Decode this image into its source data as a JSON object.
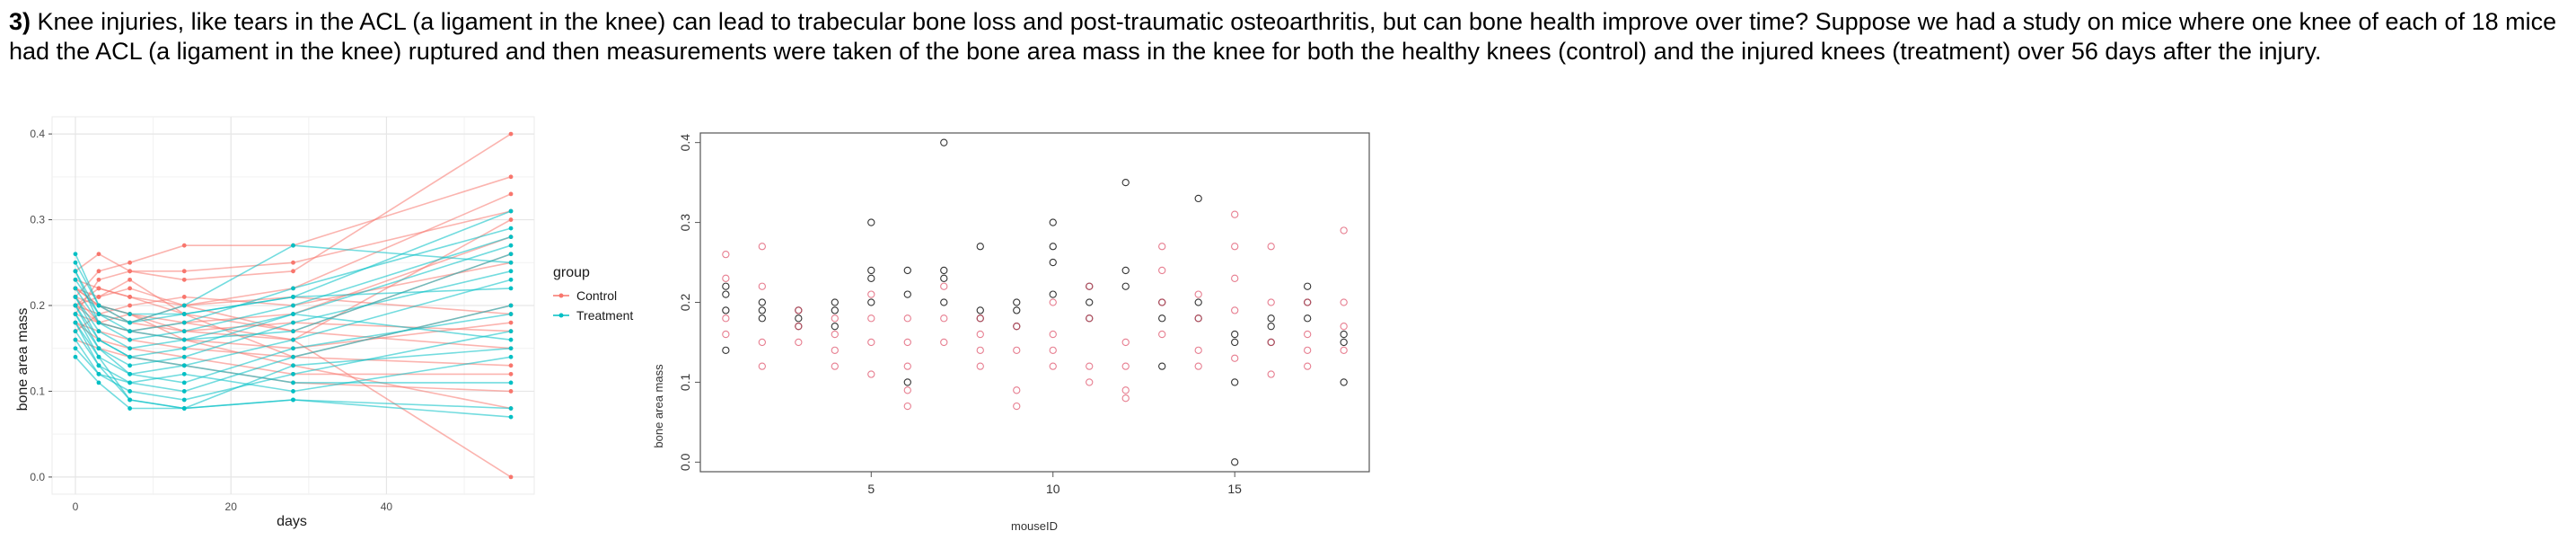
{
  "question": {
    "number": "3)",
    "text": " Knee injuries, like tears in the ACL (a ligament in the knee) can lead to trabecular bone loss and post-traumatic osteoarthritis, but can bone health improve over time? Suppose we had a study on mice where one knee of each of 18 mice had the ACL (a ligament in the knee) ruptured and then measurements were taken of the bone area mass in the knee for both the healthy knees (control) and the injured knees (treatment) over 56 days after the injury."
  },
  "colors": {
    "control": "#f8766d",
    "treatment": "#00bfc4",
    "black_points": "#000000",
    "pink_points": "#df536b"
  },
  "chart_data": [
    {
      "type": "line",
      "title": "",
      "xlabel": "days",
      "ylabel": "bone area mass",
      "xlim": [
        -3,
        59
      ],
      "ylim": [
        -0.02,
        0.42
      ],
      "xticks": [
        "0",
        "20",
        "40"
      ],
      "yticks": [
        "0.0",
        "0.1",
        "0.2",
        "0.3",
        "0.4"
      ],
      "legend": {
        "title": "group",
        "entries": [
          "Control",
          "Treatment"
        ],
        "position": "right"
      },
      "x": [
        0,
        3,
        7,
        14,
        28,
        56
      ],
      "series": [
        {
          "name": "Control",
          "values": [
            0.21,
            0.24,
            0.25,
            0.27,
            0.27,
            0.35
          ]
        },
        {
          "name": "Control",
          "values": [
            0.24,
            0.26,
            0.24,
            0.23,
            0.24,
            0.4
          ]
        },
        {
          "name": "Control",
          "values": [
            0.2,
            0.22,
            0.21,
            0.2,
            0.22,
            0.33
          ]
        },
        {
          "name": "Control",
          "values": [
            0.22,
            0.2,
            0.19,
            0.17,
            0.16,
            0.3
          ]
        },
        {
          "name": "Control",
          "values": [
            0.19,
            0.23,
            0.24,
            0.24,
            0.25,
            0.31
          ]
        },
        {
          "name": "Control",
          "values": [
            0.21,
            0.18,
            0.17,
            0.18,
            0.19,
            0.28
          ]
        },
        {
          "name": "Control",
          "values": [
            0.23,
            0.22,
            0.21,
            0.19,
            0.17,
            0.26
          ]
        },
        {
          "name": "Control",
          "values": [
            0.2,
            0.19,
            0.2,
            0.21,
            0.2,
            0.25
          ]
        },
        {
          "name": "Control",
          "values": [
            0.18,
            0.17,
            0.16,
            0.15,
            0.14,
            0.2
          ]
        },
        {
          "name": "Control",
          "values": [
            0.22,
            0.21,
            0.22,
            0.2,
            0.21,
            0.19
          ]
        },
        {
          "name": "Control",
          "values": [
            0.19,
            0.18,
            0.19,
            0.16,
            0.15,
            0.18
          ]
        },
        {
          "name": "Control",
          "values": [
            0.21,
            0.2,
            0.18,
            0.17,
            0.18,
            0.17
          ]
        },
        {
          "name": "Control",
          "values": [
            0.17,
            0.19,
            0.18,
            0.2,
            0.17,
            0.15
          ]
        },
        {
          "name": "Control",
          "values": [
            0.2,
            0.21,
            0.23,
            0.19,
            0.14,
            0.13
          ]
        },
        {
          "name": "Control",
          "values": [
            0.18,
            0.16,
            0.15,
            0.14,
            0.12,
            0.12
          ]
        },
        {
          "name": "Control",
          "values": [
            0.16,
            0.15,
            0.14,
            0.13,
            0.11,
            0.1
          ]
        },
        {
          "name": "Control",
          "values": [
            0.2,
            0.18,
            0.17,
            0.16,
            0.13,
            0.08
          ]
        },
        {
          "name": "Control",
          "values": [
            0.22,
            0.2,
            0.19,
            0.18,
            0.16,
            0.0
          ]
        },
        {
          "name": "Treatment",
          "values": [
            0.26,
            0.2,
            0.18,
            0.19,
            0.21,
            0.31
          ]
        },
        {
          "name": "Treatment",
          "values": [
            0.24,
            0.19,
            0.17,
            0.18,
            0.22,
            0.29
          ]
        },
        {
          "name": "Treatment",
          "values": [
            0.22,
            0.18,
            0.16,
            0.17,
            0.2,
            0.28
          ]
        },
        {
          "name": "Treatment",
          "values": [
            0.2,
            0.16,
            0.14,
            0.15,
            0.19,
            0.27
          ]
        },
        {
          "name": "Treatment",
          "values": [
            0.21,
            0.17,
            0.15,
            0.16,
            0.17,
            0.26
          ]
        },
        {
          "name": "Treatment",
          "values": [
            0.23,
            0.19,
            0.18,
            0.2,
            0.27,
            0.25
          ]
        },
        {
          "name": "Treatment",
          "values": [
            0.19,
            0.15,
            0.13,
            0.14,
            0.18,
            0.24
          ]
        },
        {
          "name": "Treatment",
          "values": [
            0.18,
            0.14,
            0.12,
            0.13,
            0.16,
            0.23
          ]
        },
        {
          "name": "Treatment",
          "values": [
            0.25,
            0.2,
            0.19,
            0.19,
            0.21,
            0.22
          ]
        },
        {
          "name": "Treatment",
          "values": [
            0.17,
            0.13,
            0.11,
            0.1,
            0.14,
            0.2
          ]
        },
        {
          "name": "Treatment",
          "values": [
            0.2,
            0.15,
            0.12,
            0.11,
            0.15,
            0.19
          ]
        },
        {
          "name": "Treatment",
          "values": [
            0.16,
            0.12,
            0.1,
            0.09,
            0.12,
            0.17
          ]
        },
        {
          "name": "Treatment",
          "values": [
            0.24,
            0.18,
            0.17,
            0.16,
            0.19,
            0.16
          ]
        },
        {
          "name": "Treatment",
          "values": [
            0.19,
            0.14,
            0.09,
            0.08,
            0.13,
            0.15
          ]
        },
        {
          "name": "Treatment",
          "values": [
            0.15,
            0.12,
            0.11,
            0.12,
            0.1,
            0.14
          ]
        },
        {
          "name": "Treatment",
          "values": [
            0.21,
            0.16,
            0.14,
            0.13,
            0.11,
            0.11
          ]
        },
        {
          "name": "Treatment",
          "values": [
            0.14,
            0.11,
            0.08,
            0.08,
            0.09,
            0.08
          ]
        },
        {
          "name": "Treatment",
          "values": [
            0.18,
            0.13,
            0.09,
            0.08,
            0.09,
            0.07
          ]
        }
      ]
    },
    {
      "type": "scatter",
      "title": "",
      "xlabel": "mouseID",
      "ylabel": "bone area mass",
      "xlim": [
        0.3,
        18.7
      ],
      "ylim": [
        -0.012,
        0.412
      ],
      "xticks": [
        "5",
        "10",
        "15"
      ],
      "yticks": [
        "0.0",
        "0.1",
        "0.2",
        "0.3",
        "0.4"
      ],
      "series": [
        {
          "name": "black",
          "x": [
            1,
            1,
            1,
            1,
            2,
            2,
            2,
            3,
            3,
            3,
            4,
            4,
            4,
            5,
            5,
            5,
            5,
            6,
            6,
            6,
            7,
            7,
            7,
            7,
            8,
            8,
            8,
            9,
            9,
            9,
            10,
            10,
            10,
            10,
            11,
            11,
            11,
            12,
            12,
            12,
            13,
            13,
            13,
            14,
            14,
            14,
            15,
            15,
            15,
            15,
            16,
            16,
            16,
            17,
            17,
            17,
            18,
            18,
            18
          ],
          "y": [
            0.22,
            0.21,
            0.19,
            0.14,
            0.2,
            0.19,
            0.18,
            0.19,
            0.18,
            0.17,
            0.2,
            0.19,
            0.17,
            0.3,
            0.24,
            0.23,
            0.2,
            0.24,
            0.21,
            0.1,
            0.4,
            0.24,
            0.23,
            0.2,
            0.27,
            0.19,
            0.18,
            0.2,
            0.19,
            0.17,
            0.3,
            0.27,
            0.25,
            0.21,
            0.22,
            0.2,
            0.18,
            0.35,
            0.24,
            0.22,
            0.2,
            0.18,
            0.12,
            0.33,
            0.2,
            0.18,
            0.16,
            0.15,
            0.1,
            0.0,
            0.18,
            0.17,
            0.15,
            0.22,
            0.2,
            0.18,
            0.16,
            0.15,
            0.1
          ]
        },
        {
          "name": "pink",
          "x": [
            1,
            1,
            1,
            1,
            2,
            2,
            2,
            2,
            3,
            3,
            3,
            4,
            4,
            4,
            4,
            5,
            5,
            5,
            5,
            6,
            6,
            6,
            6,
            6,
            7,
            7,
            7,
            8,
            8,
            8,
            8,
            9,
            9,
            9,
            9,
            10,
            10,
            10,
            10,
            11,
            11,
            11,
            11,
            12,
            12,
            12,
            12,
            13,
            13,
            13,
            13,
            14,
            14,
            14,
            14,
            15,
            15,
            15,
            15,
            15,
            16,
            16,
            16,
            16,
            17,
            17,
            17,
            17,
            18,
            18,
            18,
            18
          ],
          "y": [
            0.26,
            0.23,
            0.18,
            0.16,
            0.27,
            0.22,
            0.15,
            0.12,
            0.19,
            0.17,
            0.15,
            0.18,
            0.16,
            0.14,
            0.12,
            0.21,
            0.18,
            0.15,
            0.11,
            0.18,
            0.15,
            0.12,
            0.09,
            0.07,
            0.22,
            0.18,
            0.15,
            0.18,
            0.16,
            0.14,
            0.12,
            0.17,
            0.14,
            0.09,
            0.07,
            0.2,
            0.16,
            0.14,
            0.12,
            0.22,
            0.18,
            0.12,
            0.1,
            0.15,
            0.12,
            0.09,
            0.08,
            0.27,
            0.24,
            0.2,
            0.16,
            0.21,
            0.18,
            0.14,
            0.12,
            0.31,
            0.27,
            0.23,
            0.19,
            0.13,
            0.27,
            0.2,
            0.15,
            0.11,
            0.2,
            0.16,
            0.14,
            0.12,
            0.29,
            0.2,
            0.17,
            0.14
          ]
        }
      ]
    }
  ]
}
